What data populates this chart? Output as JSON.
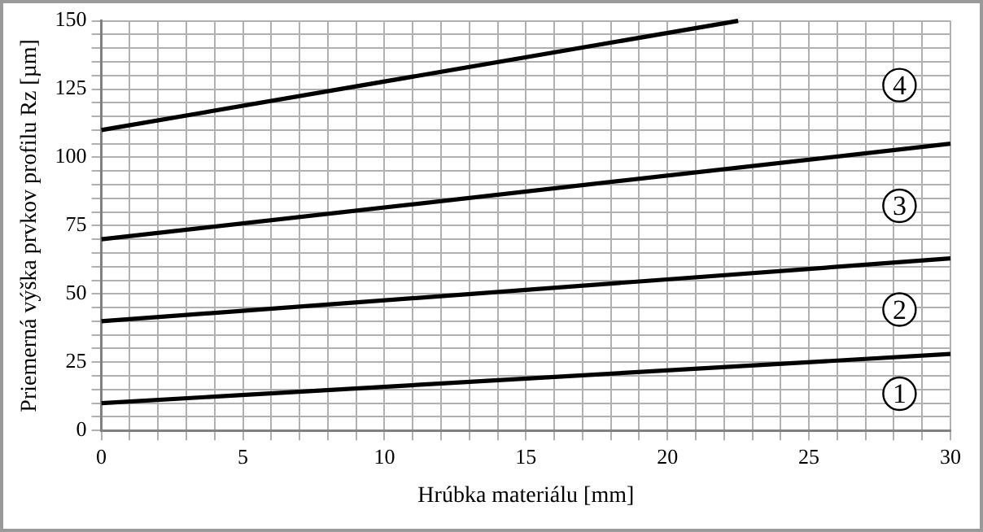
{
  "chart_data": {
    "type": "line",
    "xlabel": "Hrúbka materiálu [mm]",
    "ylabel": "Priemerná výška prvkov profilu Rz [µm]",
    "x": [
      0,
      30
    ],
    "series": [
      {
        "name": "1",
        "color": "#000000",
        "values": [
          10,
          28
        ]
      },
      {
        "name": "2",
        "color": "#000000",
        "values": [
          40,
          63
        ]
      },
      {
        "name": "3",
        "color": "#000000",
        "values": [
          70,
          105
        ]
      },
      {
        "name": "4",
        "color": "#000000",
        "x": [
          0,
          22.5
        ],
        "values": [
          110,
          150
        ]
      }
    ],
    "xlim": [
      0,
      30
    ],
    "xticks": [
      0,
      {
        "value": 1,
        "label": null
      },
      {
        "value": 2,
        "label": null
      },
      {
        "value": 3,
        "label": null
      },
      {
        "value": 4,
        "label": null
      },
      5,
      {
        "value": 6,
        "label": null
      },
      {
        "value": 7,
        "label": null
      },
      {
        "value": 8,
        "label": null
      },
      {
        "value": 9,
        "label": null
      },
      10,
      {
        "value": 11,
        "label": null
      },
      {
        "value": 12,
        "label": null
      },
      {
        "value": 13,
        "label": null
      },
      {
        "value": 14,
        "label": null
      },
      15,
      {
        "value": 16,
        "label": null
      },
      {
        "value": 17,
        "label": null
      },
      {
        "value": 18,
        "label": null
      },
      {
        "value": 19,
        "label": null
      },
      20,
      {
        "value": 21,
        "label": null
      },
      {
        "value": 22,
        "label": null
      },
      {
        "value": 23,
        "label": null
      },
      {
        "value": 24,
        "label": null
      },
      25,
      {
        "value": 26,
        "label": null
      },
      {
        "value": 27,
        "label": null
      },
      {
        "value": 28,
        "label": null
      },
      {
        "value": 29,
        "label": null
      },
      30
    ],
    "ylim": [
      0,
      150
    ],
    "yticks": [
      0,
      {
        "value": 5,
        "label": null
      },
      {
        "value": 10,
        "label": null
      },
      {
        "value": 15,
        "label": null
      },
      {
        "value": 20,
        "label": null
      },
      25,
      {
        "value": 30,
        "label": null
      },
      {
        "value": 35,
        "label": null
      },
      {
        "value": 40,
        "label": null
      },
      {
        "value": 45,
        "label": null
      },
      50,
      {
        "value": 55,
        "label": null
      },
      {
        "value": 60,
        "label": null
      },
      {
        "value": 65,
        "label": null
      },
      {
        "value": 70,
        "label": null
      },
      75,
      {
        "value": 80,
        "label": null
      },
      {
        "value": 85,
        "label": null
      },
      {
        "value": 90,
        "label": null
      },
      {
        "value": 95,
        "label": null
      },
      100,
      {
        "value": 105,
        "label": null
      },
      {
        "value": 110,
        "label": null
      },
      {
        "value": 115,
        "label": null
      },
      {
        "value": 120,
        "label": null
      },
      125,
      {
        "value": 130,
        "label": null
      },
      {
        "value": 135,
        "label": null
      },
      {
        "value": 140,
        "label": null
      },
      {
        "value": 145,
        "label": null
      },
      150
    ],
    "grid": true,
    "legend": false,
    "marker": "none",
    "line_style": "solid"
  }
}
